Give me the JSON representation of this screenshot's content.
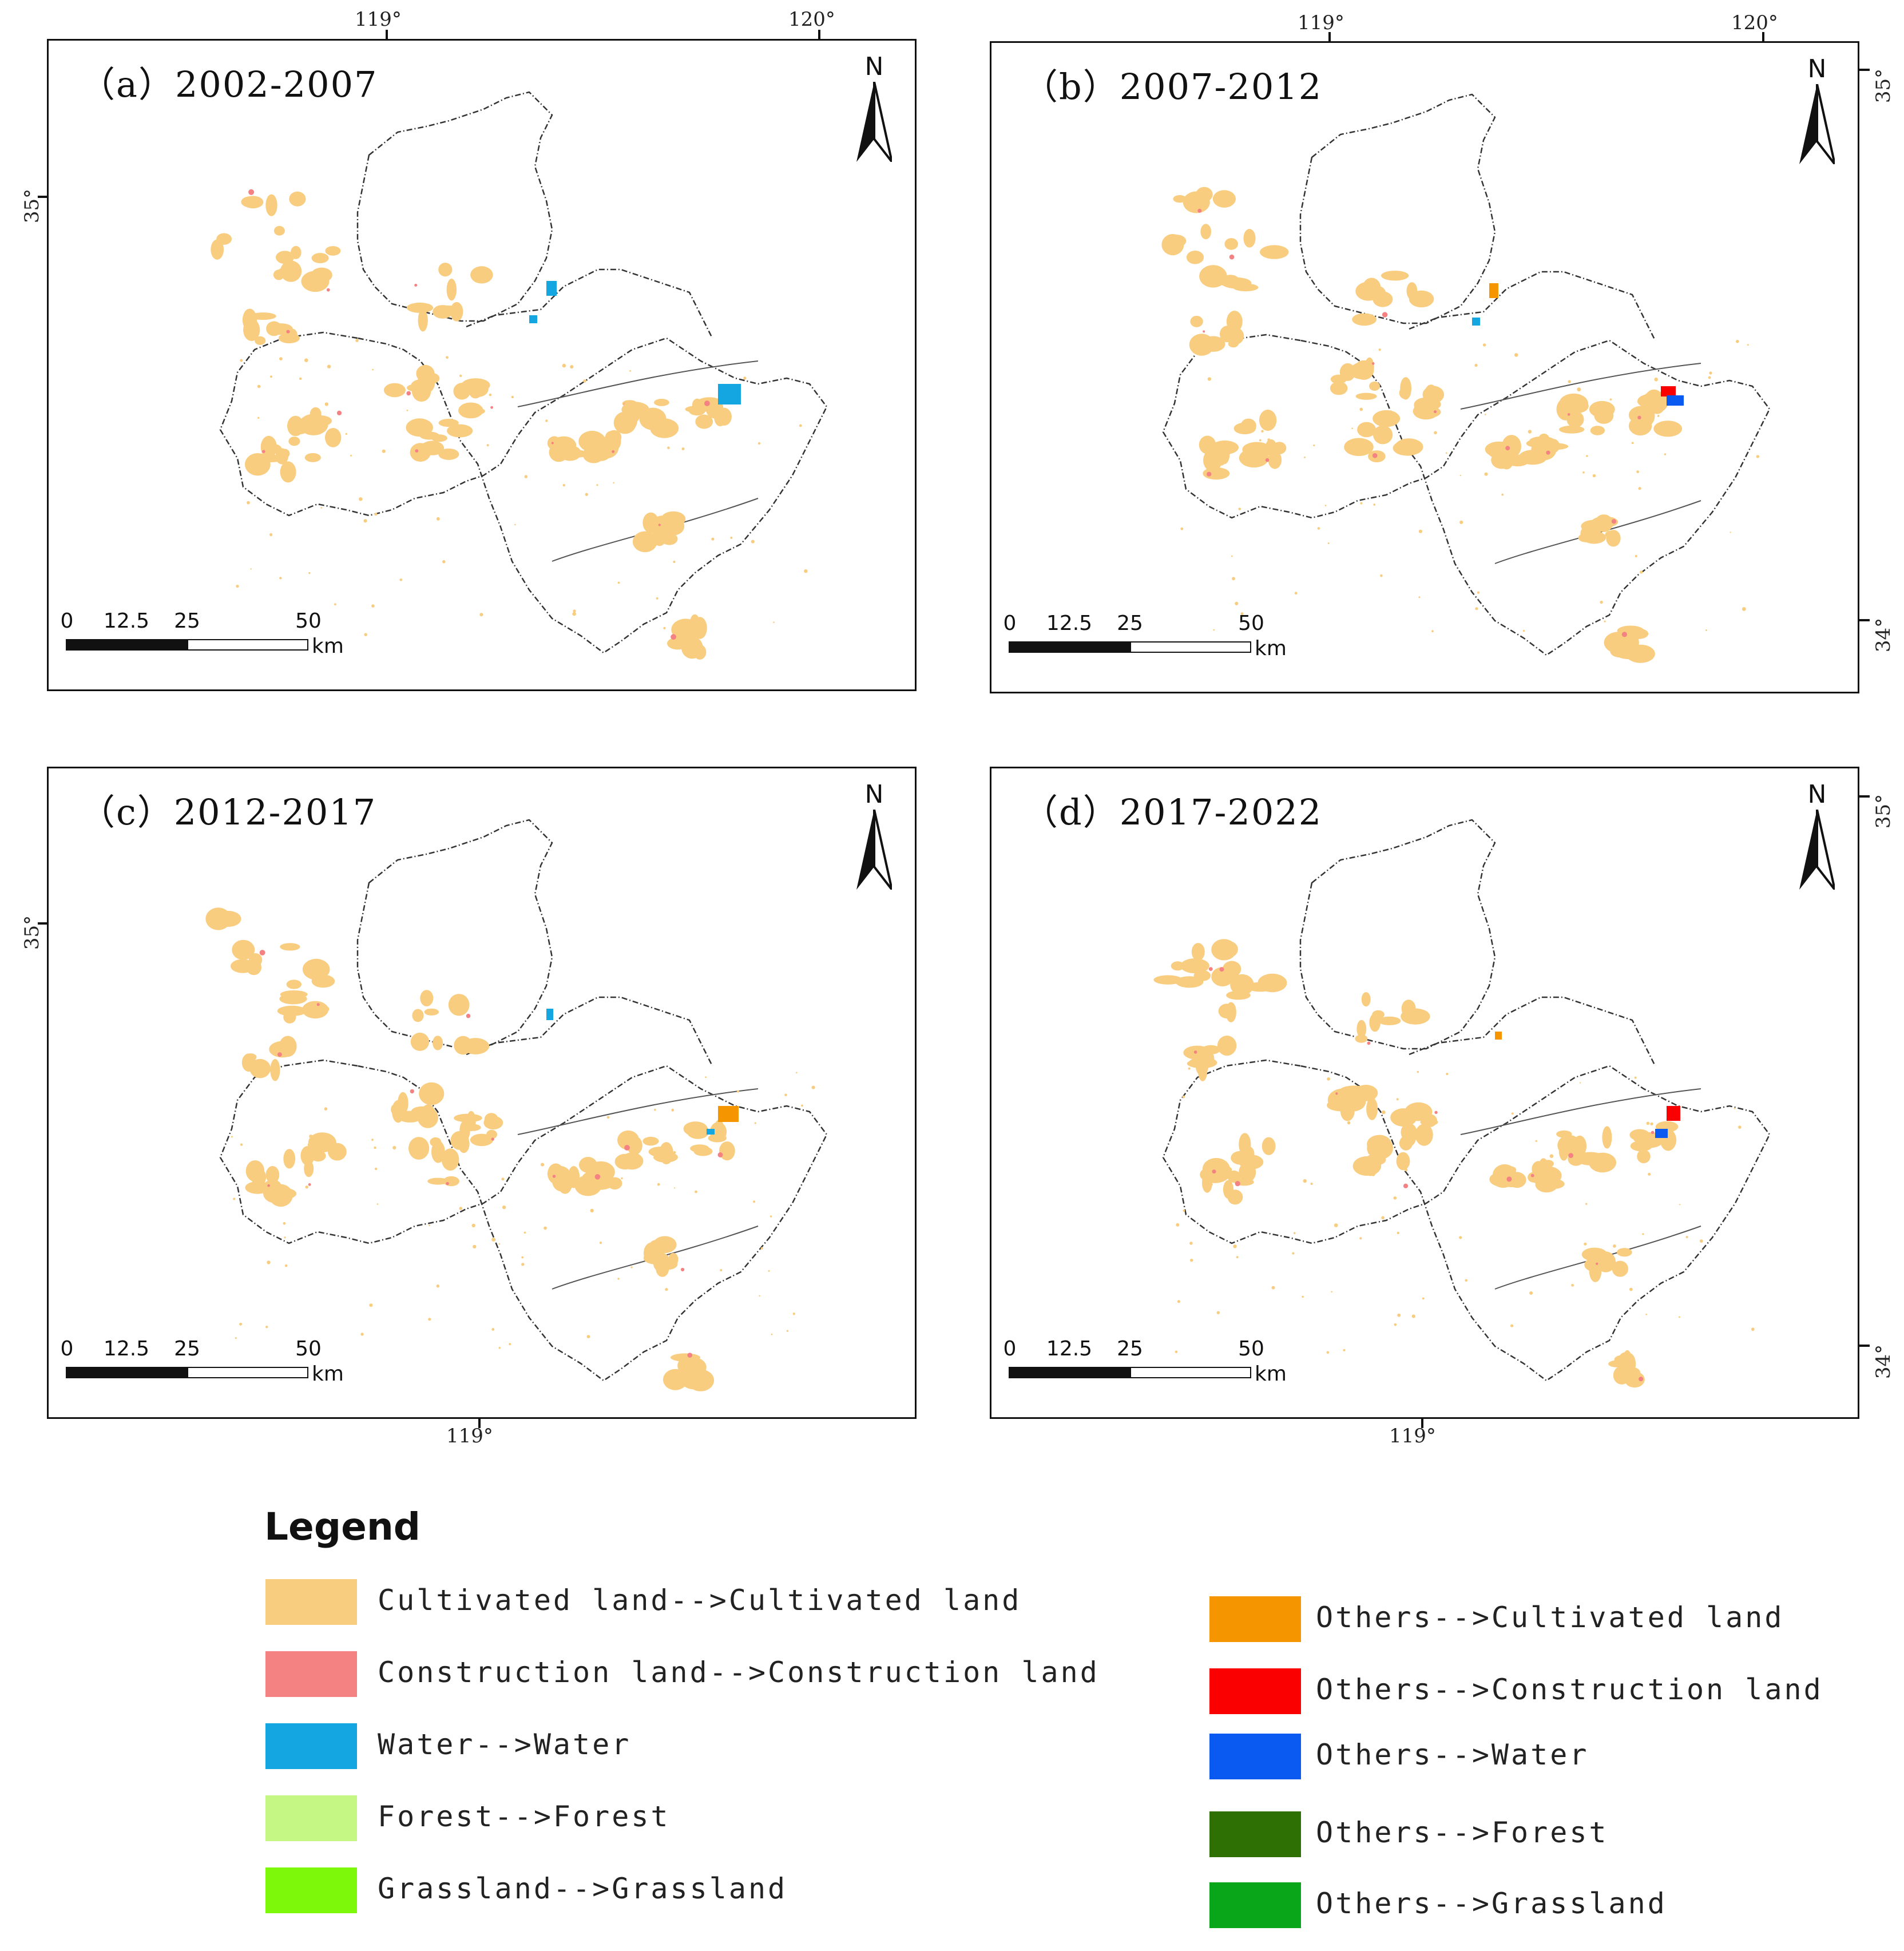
{
  "panels": [
    {
      "id": "a",
      "title": "（a）2002-2007",
      "north": "N",
      "scale": {
        "ticks": [
          "0",
          "12.5",
          "25",
          "50"
        ],
        "unit": "km"
      }
    },
    {
      "id": "b",
      "title": "（b）2007-2012",
      "north": "N",
      "scale": {
        "ticks": [
          "0",
          "12.5",
          "25",
          "50"
        ],
        "unit": "km"
      }
    },
    {
      "id": "c",
      "title": "（c）2012-2017",
      "north": "N",
      "scale": {
        "ticks": [
          "0",
          "12.5",
          "25",
          "50"
        ],
        "unit": "km"
      }
    },
    {
      "id": "d",
      "title": "（d）2017-2022",
      "north": "N",
      "scale": {
        "ticks": [
          "0",
          "12.5",
          "25",
          "50"
        ],
        "unit": "km"
      }
    }
  ],
  "coords": {
    "top_a_119": "119°",
    "top_a_120": "120°",
    "top_b_119": "119°",
    "top_b_120": "120°",
    "left_a_35": "35°",
    "left_c_35": "35°",
    "right_b_35": "35°",
    "right_b_34": "34°",
    "right_d_35": "35°",
    "right_d_34": "34°",
    "bottom_c_119": "119°",
    "bottom_d_119": "119°"
  },
  "legend": {
    "title": "Legend",
    "left": [
      {
        "label": "Cultivated land-->Cultivated land",
        "color": "#f8cd80"
      },
      {
        "label": "Construction land-->Construction land",
        "color": "#f48282"
      },
      {
        "label": "Water-->Water",
        "color": "#13a6e0"
      },
      {
        "label": "Forest-->Forest",
        "color": "#c4f784"
      },
      {
        "label": "Grassland-->Grassland",
        "color": "#7ef80a"
      }
    ],
    "right": [
      {
        "label": "Others-->Cultivated land",
        "color": "#f59500"
      },
      {
        "label": "Others-->Construction land",
        "color": "#fa0000"
      },
      {
        "label": "Others-->Water",
        "color": "#0a5af2"
      },
      {
        "label": "Others-->Forest",
        "color": "#2f7005"
      },
      {
        "label": "Others-->Grassland",
        "color": "#0aa61a"
      }
    ]
  },
  "colors": {
    "cultivated": "#f8cd80",
    "construction": "#f48282",
    "water": "#13a6e0",
    "others_cultivated": "#f59500",
    "others_construction": "#fa0000",
    "others_water": "#0a5af2"
  }
}
